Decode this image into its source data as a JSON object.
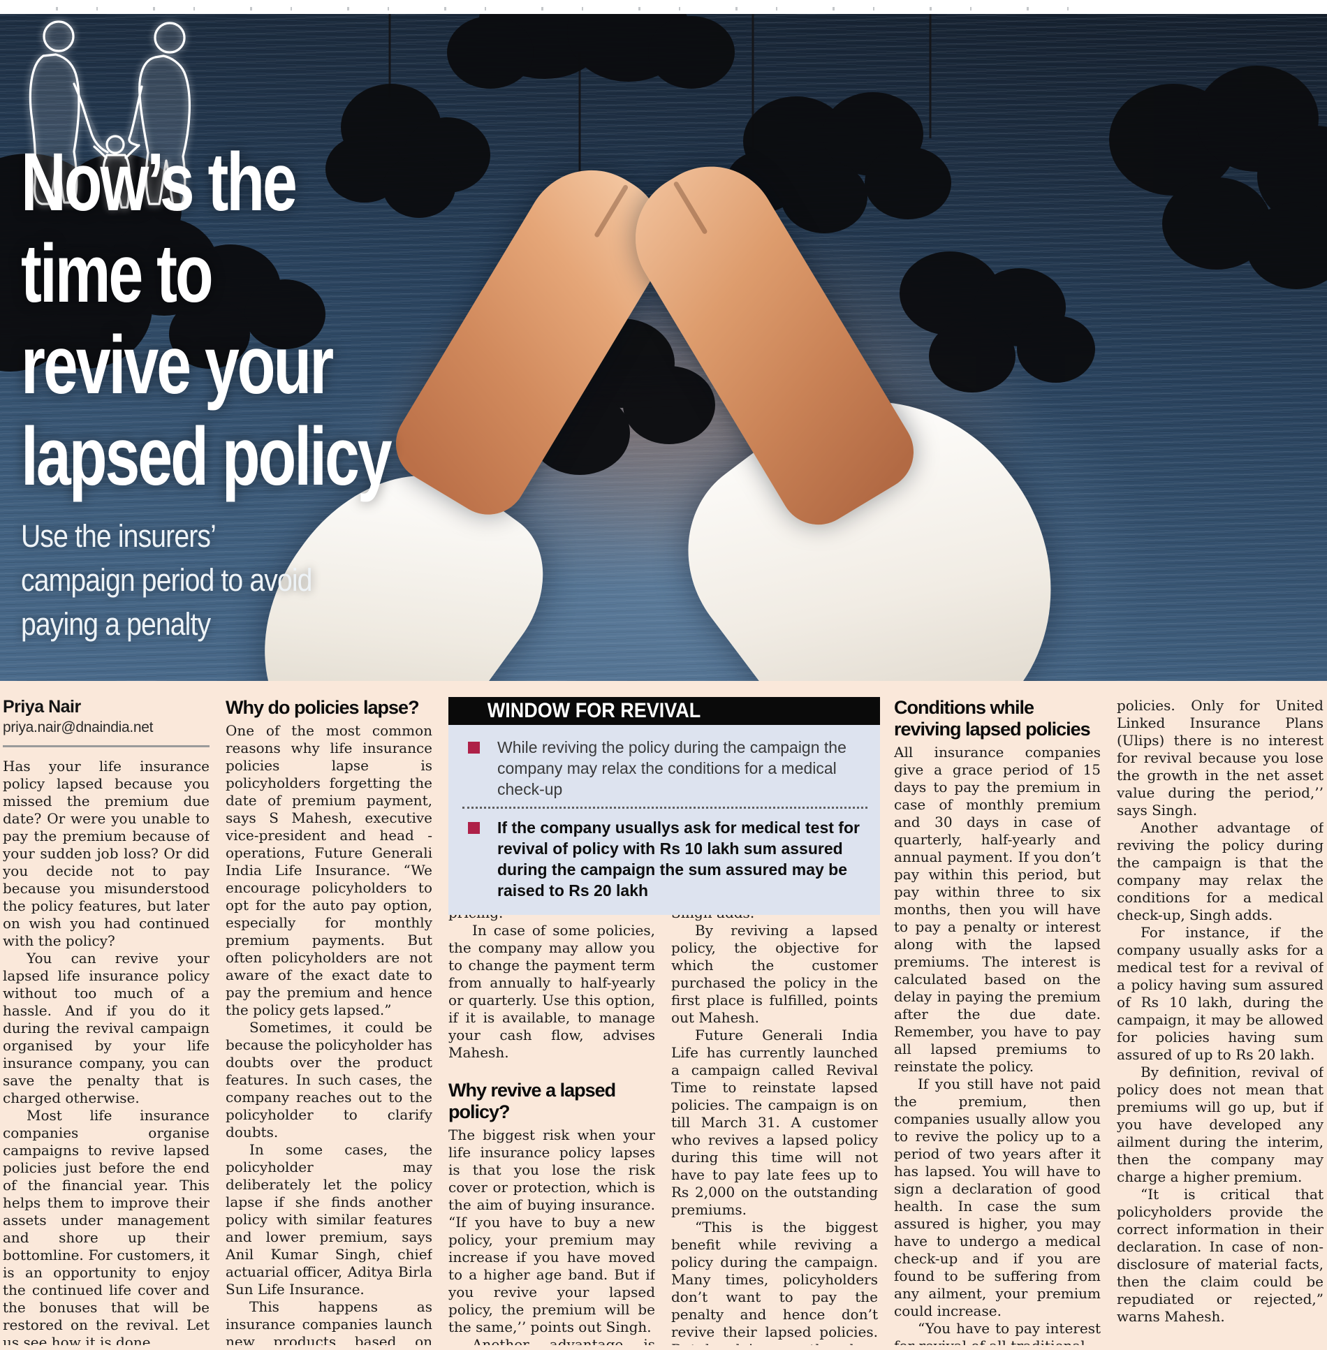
{
  "hero": {
    "headline_lines": [
      "Now’s the",
      "time to",
      "revive your",
      "lapsed policy"
    ],
    "subtitle_lines": [
      "Use the insurers’",
      "campaign period to avoid",
      "paying a penalty"
    ],
    "illustration_elements": [
      "storm-clouds-on-strings",
      "protecting-hands-roof",
      "family-outline"
    ]
  },
  "byline": {
    "author": "Priya Nair",
    "email": "priya.nair@dnaindia.net"
  },
  "revival_box": {
    "title": "WINDOW FOR REVIVAL",
    "accent_color": "#ae2148",
    "body_bg": "#dde3ef",
    "bullets": [
      {
        "bold": false,
        "text": "While reviving the policy during the campaign the company may relax the conditions for a medical check-up"
      },
      {
        "bold": true,
        "text": "If the company usuallys ask for medical test for revival of policy with Rs 10 lakh sum assured during the campaign the sum assured may be raised to Rs 20 lakh"
      }
    ]
  },
  "columns": [
    {
      "blocks": [
        {
          "type": "para",
          "indent": false,
          "text": "Has your life insurance policy lapsed because you missed the premium due date? Or were you unable to pay the premium because of your sudden job loss? Or did you decide not to pay because you misunderstood the policy features, but later on wish you had continued with the policy?"
        },
        {
          "type": "para",
          "indent": true,
          "text": "You can revive your lapsed life insurance policy without too much of a hassle. And if you do it during the revival campaign organised by your life insurance company, you can save the penalty that is charged otherwise."
        },
        {
          "type": "para",
          "indent": true,
          "text": "Most life insurance companies organise campaigns to revive lapsed policies just before the end of the financial year. This helps them to improve their assets under management and shore up their bottomline. For customers, it is an opportunity to enjoy the continued life cover and the bonuses that will be restored on the revival. Let us see how it is done."
        }
      ]
    },
    {
      "blocks": [
        {
          "type": "heading",
          "text": "Why do policies lapse?"
        },
        {
          "type": "para",
          "indent": false,
          "text": "One of the most common reasons why life insurance policies lapse is policyholders forgetting the date of premium payment, says S Mahesh, executive vice-president and head - operations, Future Generali India Life Insurance. “We encourage policyholders to opt for the auto pay option, especially for monthly premium payments. But often policyholders are not aware of the exact date to pay the premium and hence the policy gets lapsed.”"
        },
        {
          "type": "para",
          "indent": true,
          "text": "Sometimes, it could be because the policyholder has doubts over the product features. In such cases, the company reaches out to the policyholder to clarify doubts."
        },
        {
          "type": "para",
          "indent": true,
          "text": "In some cases, the policyholder may deliberately let the policy lapse if she finds another policy with similar features and lower premium, says Anil Kumar Singh, chief actuarial officer, Aditya Birla Sun Life Insurance."
        },
        {
          "type": "para",
          "indent": true,
          "text": "This happens as insurance companies launch new products based on revised mortality tables where the life expectancy is higher and"
        }
      ]
    },
    {
      "blocks": [
        {
          "type": "para",
          "indent": false,
          "text": "thereby it is possible for companies to offer better pricing."
        },
        {
          "type": "para",
          "indent": true,
          "text": "In case of some policies, the company may allow you to change the payment term from annually to half-yearly or quarterly. Use this option, if it is available, to manage your cash flow, advises Mahesh."
        },
        {
          "type": "heading",
          "text": "Why revive a lapsed policy?"
        },
        {
          "type": "para",
          "indent": false,
          "text": "The biggest risk when your life insurance policy lapses is that you lose the risk cover or protection, which is the aim of buying insurance. “If you have to buy a new policy, your premium may increase if you have moved to a higher age band. But if you revive your lapsed policy, the premium will be the same,’’ points out Singh."
        },
        {
          "type": "para",
          "indent": true,
          "text": "Another advantage is that all benefits, such as bonuses,"
        }
      ]
    },
    {
      "blocks": [
        {
          "type": "para",
          "indent": false,
          "text": "that are accrued during the policy term, will be restored, Singh adds."
        },
        {
          "type": "para",
          "indent": true,
          "text": "By reviving a lapsed policy, the objective for which the customer purchased the policy in the first place is fulfilled, points out Mahesh."
        },
        {
          "type": "para",
          "indent": true,
          "text": "Future Generali India Life has currently launched a campaign called Revival Time to reinstate lapsed policies. The campaign is on till March 31. A customer who revives a lapsed policy during this time will not have to pay late fees up to Rs 2,000 on the outstanding premiums."
        },
        {
          "type": "para",
          "indent": true,
          "text": "“This is the biggest benefit while reviving a policy during the campaign. Many times, policyholders don’t want to pay the penalty and hence don’t revive their lapsed policies. But by doing so, they lose out on the financial benefits,” Mahesh points out."
        }
      ]
    },
    {
      "blocks": [
        {
          "type": "heading",
          "text": "Conditions while reviving lapsed policies"
        },
        {
          "type": "para",
          "indent": false,
          "text": "All insurance companies give a grace period of 15 days to pay the premium in case of monthly premium and 30 days in case of quarterly, half-yearly and annual payment. If you don’t pay within this period, but pay within three to six months, then you will have to pay a penalty or interest along with the lapsed premiums. The interest is calculated based on the delay in paying the premium after the due date. Remember, you have to pay all lapsed premiums to reinstate the policy."
        },
        {
          "type": "para",
          "indent": true,
          "text": "If you still have not paid the premium, then companies usually allow you to revive the policy up to a period of two years after it has lapsed. You will have to sign a declaration of good health. In case the sum assured is higher, you may have to undergo a medical check-up and if you are found to be suffering from any ailment, your premium could increase."
        },
        {
          "type": "para",
          "indent": true,
          "text": "“You have to pay interest for revival of all traditional"
        }
      ]
    },
    {
      "blocks": [
        {
          "type": "para",
          "indent": false,
          "text": "policies. Only for United Linked Insurance Plans (Ulips) there is no interest for revival because you lose the growth in the net asset value during the period,’’ says Singh."
        },
        {
          "type": "para",
          "indent": true,
          "text": "Another advantage of reviving the policy during the campaign is that the company may relax the conditions for a medical check-up, Singh adds."
        },
        {
          "type": "para",
          "indent": true,
          "text": "For instance, if the company usually asks for a medical test for a revival of a policy having sum assured of Rs 10 lakh, during the campaign, it may be allowed for policies having sum assured of up to Rs 20 lakh."
        },
        {
          "type": "para",
          "indent": true,
          "text": "By definition, revival of policy does not mean that premiums will go up, but if you have developed any ailment during the interim, then the company may charge a higher premium."
        },
        {
          "type": "para",
          "indent": true,
          "text": "“It is critical that policyholders provide the correct information in their declaration. In case of non-disclosure of material facts, then the claim could be repudiated or rejected,” warns Mahesh."
        }
      ]
    }
  ],
  "colors": {
    "page_bg": "#fae8da",
    "photo_navy": "#28405a",
    "box_header_bg": "#0a0a0a",
    "box_body_bg": "#dde3ef",
    "bullet_accent": "#ae2148"
  }
}
